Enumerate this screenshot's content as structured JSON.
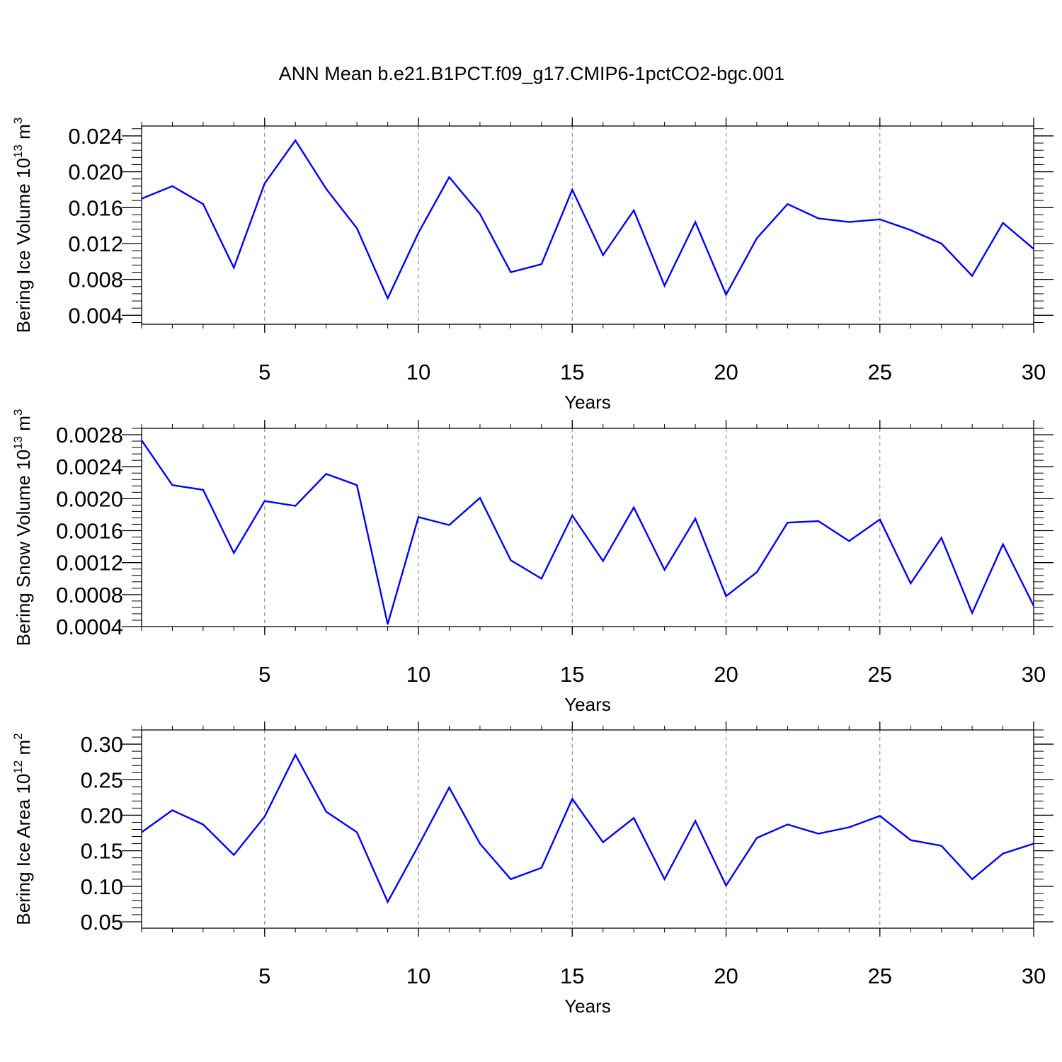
{
  "figure": {
    "title": "ANN Mean b.e21.B1PCT.f09_g17.CMIP6-1pctCO2-bgc.001"
  },
  "colors": {
    "series": "#0000ff",
    "axis": "#000000",
    "grid": "#777777"
  },
  "chart_data": [
    {
      "type": "line",
      "xlabel": "Years",
      "ylabel": {
        "base": "Bering Ice Volume 10",
        "exp": "13",
        "unit": " m",
        "unit_exp": "3"
      },
      "xlim": [
        1,
        30
      ],
      "ylim": [
        0.003,
        0.0251
      ],
      "xticks": [
        "5",
        "10",
        "15",
        "20",
        "25",
        "30"
      ],
      "yticks": [
        "0.004",
        "0.008",
        "0.012",
        "0.016",
        "0.020",
        "0.024"
      ],
      "grid": "vertical dashed at major x ticks",
      "x": [
        1,
        2,
        3,
        4,
        5,
        6,
        7,
        8,
        9,
        10,
        11,
        12,
        13,
        14,
        15,
        16,
        17,
        18,
        19,
        20,
        21,
        22,
        23,
        24,
        25,
        26,
        27,
        28,
        29,
        30
      ],
      "series": [
        {
          "values": [
            0.017,
            0.0184,
            0.0164,
            0.0093,
            0.0187,
            0.0235,
            0.0181,
            0.0137,
            0.0059,
            0.0132,
            0.0194,
            0.0153,
            0.0088,
            0.0097,
            0.018,
            0.0107,
            0.0157,
            0.0073,
            0.0144,
            0.0063,
            0.0126,
            0.0164,
            0.0148,
            0.0144,
            0.0147,
            0.0135,
            0.012,
            0.0084,
            0.0143,
            0.0114
          ]
        }
      ]
    },
    {
      "type": "line",
      "xlabel": "Years",
      "ylabel": {
        "base": "Bering Snow Volume 10",
        "exp": "13",
        "unit": " m",
        "unit_exp": "3"
      },
      "xlim": [
        1,
        30
      ],
      "ylim": [
        0.0004,
        0.00288
      ],
      "xticks": [
        "5",
        "10",
        "15",
        "20",
        "25",
        "30"
      ],
      "yticks": [
        "0.0004",
        "0.0008",
        "0.0012",
        "0.0016",
        "0.0020",
        "0.0024",
        "0.0028"
      ],
      "grid": "vertical dashed at major x ticks",
      "x": [
        1,
        2,
        3,
        4,
        5,
        6,
        7,
        8,
        9,
        10,
        11,
        12,
        13,
        14,
        15,
        16,
        17,
        18,
        19,
        20,
        21,
        22,
        23,
        24,
        25,
        26,
        27,
        28,
        29,
        30
      ],
      "series": [
        {
          "values": [
            0.00273,
            0.00217,
            0.00211,
            0.00132,
            0.00197,
            0.00191,
            0.00231,
            0.00217,
            0.00043,
            0.00177,
            0.00167,
            0.00201,
            0.00123,
            0.001,
            0.00179,
            0.00122,
            0.00189,
            0.00111,
            0.00175,
            0.00078,
            0.00108,
            0.0017,
            0.00172,
            0.00147,
            0.00174,
            0.00094,
            0.00151,
            0.00057,
            0.00143,
            0.00066
          ]
        }
      ]
    },
    {
      "type": "line",
      "xlabel": "Years",
      "ylabel": {
        "base": "Bering Ice Area 10",
        "exp": "12",
        "unit": " m",
        "unit_exp": "2"
      },
      "xlim": [
        1,
        30
      ],
      "ylim": [
        0.041,
        0.32
      ],
      "xticks": [
        "5",
        "10",
        "15",
        "20",
        "25",
        "30"
      ],
      "yticks": [
        "0.05",
        "0.10",
        "0.15",
        "0.20",
        "0.25",
        "0.30"
      ],
      "grid": "vertical dashed at major x ticks",
      "x": [
        1,
        2,
        3,
        4,
        5,
        6,
        7,
        8,
        9,
        10,
        11,
        12,
        13,
        14,
        15,
        16,
        17,
        18,
        19,
        20,
        21,
        22,
        23,
        24,
        25,
        26,
        27,
        28,
        29,
        30
      ],
      "series": [
        {
          "values": [
            0.176,
            0.207,
            0.187,
            0.144,
            0.198,
            0.285,
            0.205,
            0.176,
            0.078,
            0.157,
            0.239,
            0.16,
            0.11,
            0.126,
            0.223,
            0.162,
            0.196,
            0.11,
            0.192,
            0.101,
            0.168,
            0.187,
            0.174,
            0.183,
            0.199,
            0.165,
            0.157,
            0.11,
            0.146,
            0.16
          ]
        }
      ]
    }
  ]
}
